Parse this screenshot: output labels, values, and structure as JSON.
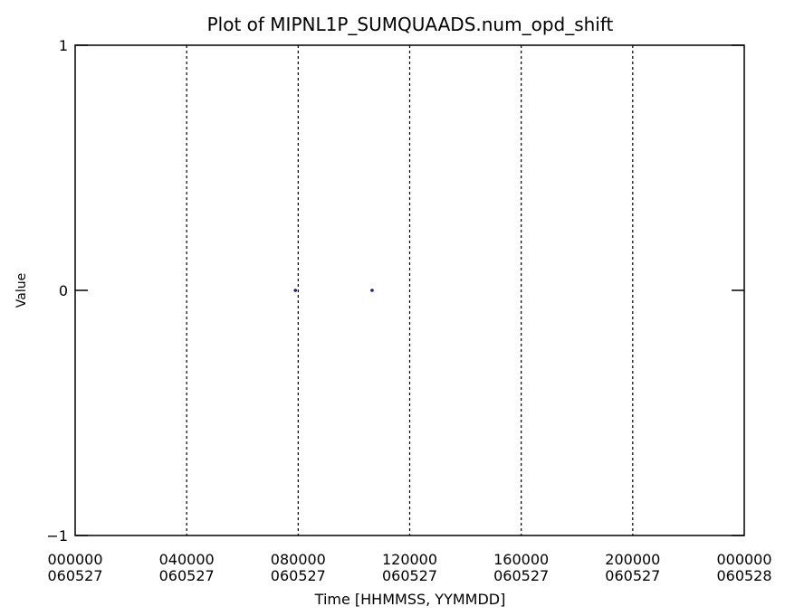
{
  "chart_data": {
    "type": "scatter",
    "title": "Plot of MIPNL1P_SUMQUAADS.num_opd_shift",
    "xlabel": "Time [HHMMSS, YYMMDD]",
    "ylabel": "Value",
    "x_unit": "hours since 000000 060527",
    "xlim": [
      0,
      24
    ],
    "ylim": [
      -1,
      1
    ],
    "x_ticks": [
      {
        "value": 0,
        "time": "000000",
        "date": "060527"
      },
      {
        "value": 4,
        "time": "040000",
        "date": "060527"
      },
      {
        "value": 8,
        "time": "080000",
        "date": "060527"
      },
      {
        "value": 12,
        "time": "120000",
        "date": "060527"
      },
      {
        "value": 16,
        "time": "160000",
        "date": "060527"
      },
      {
        "value": 20,
        "time": "200000",
        "date": "060527"
      },
      {
        "value": 24,
        "time": "000000",
        "date": "060528"
      }
    ],
    "y_ticks": [
      {
        "value": 1,
        "label": "1"
      },
      {
        "value": 0,
        "label": "0"
      },
      {
        "value": -1,
        "label": "-1"
      }
    ],
    "vertical_gridlines_at": [
      4,
      8,
      12,
      16,
      20
    ],
    "gridline_style": "dotted",
    "series": [
      {
        "points": [
          {
            "x": 7.9,
            "y": 0
          },
          {
            "x": 10.65,
            "y": 0
          }
        ]
      }
    ],
    "colors": {
      "points": "#1a1a6e",
      "axes": "#000000",
      "background": "#ffffff"
    }
  }
}
